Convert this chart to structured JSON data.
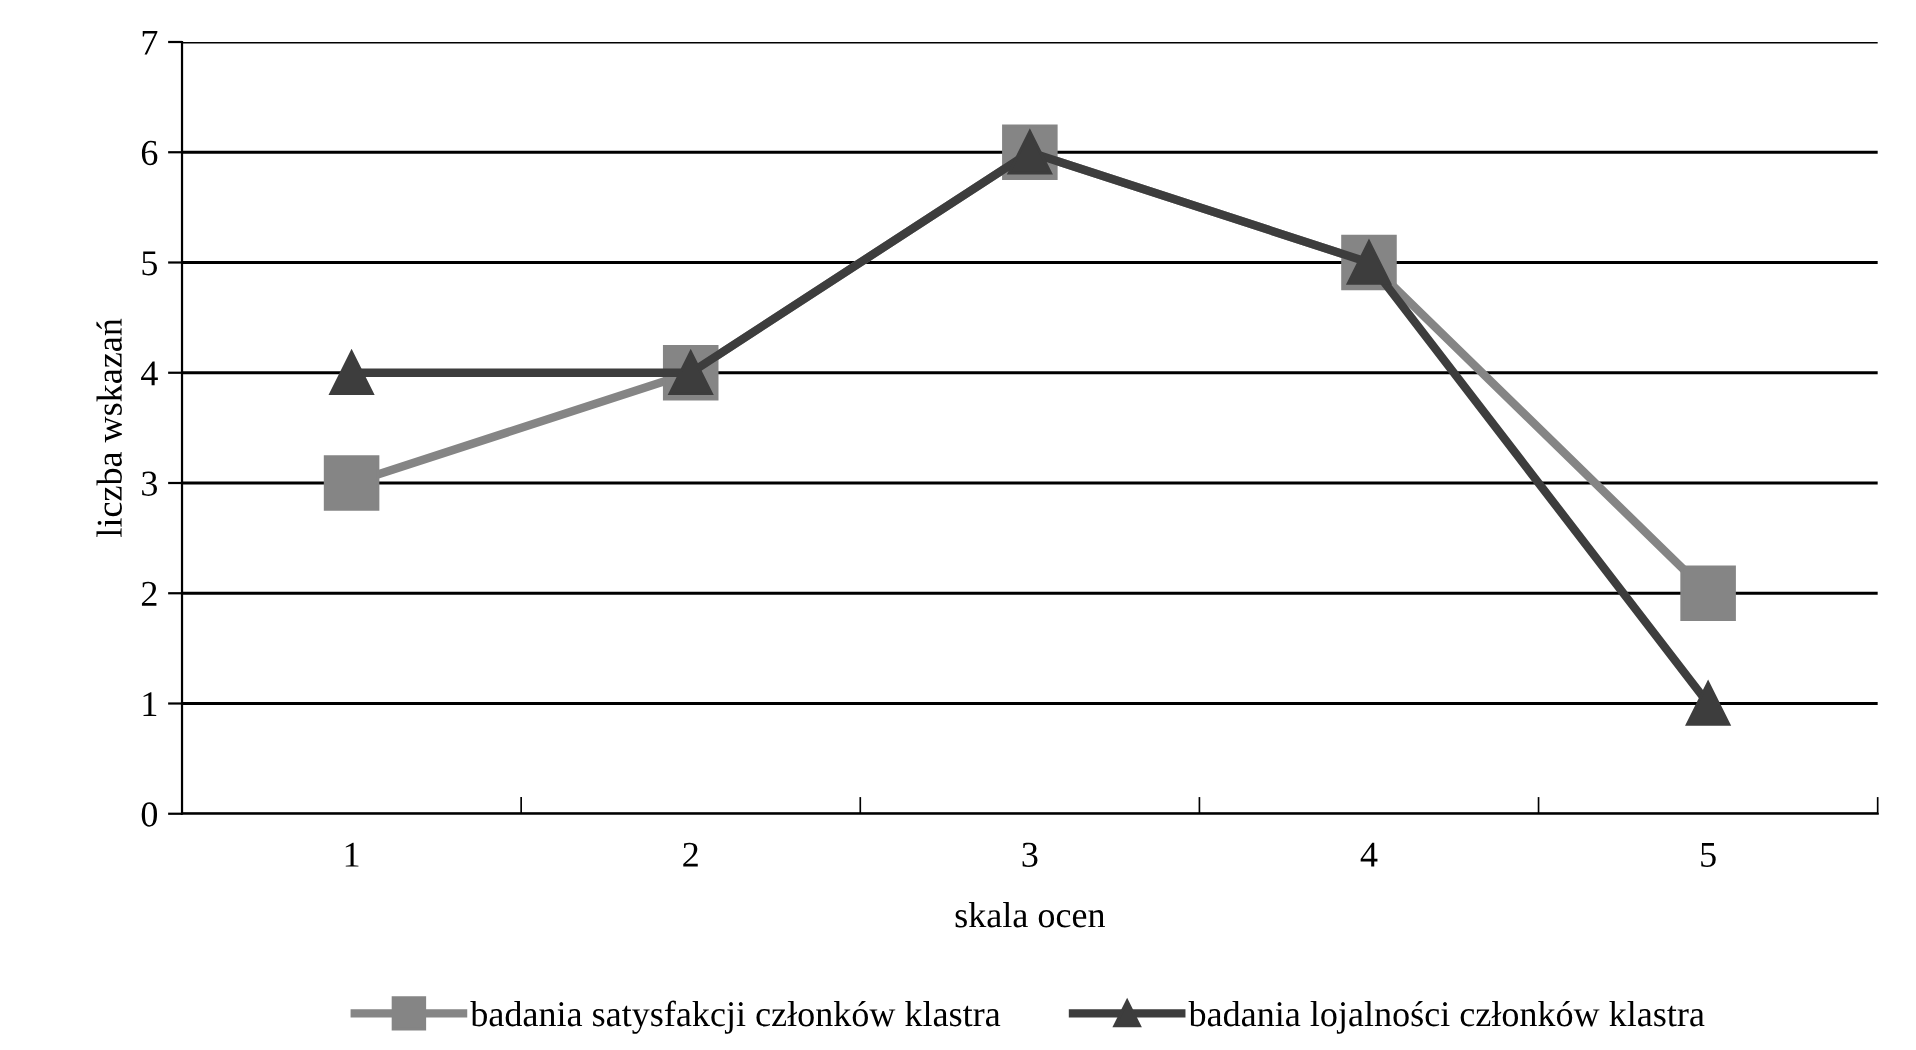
{
  "chart_data": {
    "type": "line",
    "xlabel": "skala ocen",
    "ylabel": "liczba wskazań",
    "categories": [
      "1",
      "2",
      "3",
      "4",
      "5"
    ],
    "series": [
      {
        "name": "badania satysfakcji członków klastra",
        "color": "#858585",
        "marker": "square",
        "values": [
          3,
          4,
          6,
          5,
          2
        ]
      },
      {
        "name": "badania lojalności członków klastra",
        "color": "#3d3d3d",
        "marker": "triangle",
        "values": [
          4,
          4,
          6,
          5,
          1
        ]
      }
    ],
    "ylim": [
      0,
      7
    ],
    "yticks": [
      0,
      1,
      2,
      3,
      4,
      5,
      6,
      7
    ],
    "grid": "y",
    "legend": "bottom",
    "line_style": "solid"
  }
}
